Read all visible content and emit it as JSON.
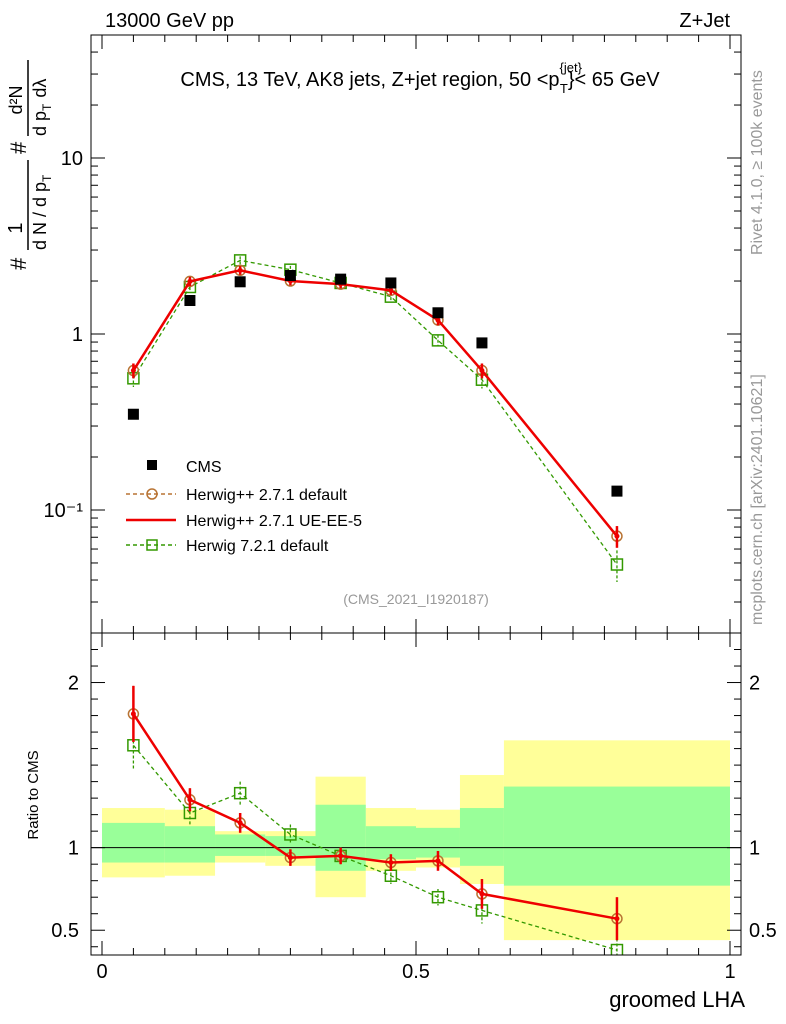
{
  "header": {
    "left": "13000 GeV pp",
    "right": "Z+Jet"
  },
  "side_labels": {
    "rivet": "Rivet 4.1.0, ≥ 100k events",
    "mcplots": "mcplots.cern.ch [arXiv:2401.10621]"
  },
  "chart_data": {
    "type": "line",
    "title": "CMS, 13 TeV, AK8 jets, Z+jet region, 50 <p_T^{jet}< 65 GeV",
    "title_parts": {
      "before": "CMS, 13 TeV, AK8 jets, Z+jet region, 50 <p",
      "sup": "{jet}",
      "sub": "T",
      "after": "}< 65 GeV"
    },
    "xlabel": "groomed LHA",
    "ylabel": "1/dN/dp_T # d²N/(dp_T dλ)",
    "ylabel_parts": {
      "hash1": "#",
      "frac1_num": "1",
      "frac1_den": "d N / d p",
      "frac1_den_sub": "T",
      "hash2": "#",
      "frac2_num": "d²N",
      "frac2_den_a": "d p",
      "frac2_den_sub": "T",
      "frac2_den_b": "dλ"
    },
    "ratio_ylabel": "Ratio to CMS",
    "watermark": "(CMS_2021_I1920187)",
    "xlim": [
      0,
      1
    ],
    "ylim_main": [
      0.02,
      50
    ],
    "ylim_ratio": [
      0.35,
      2.3
    ],
    "x_ticks": [
      0,
      0.5,
      1
    ],
    "x_tick_labels": [
      "0",
      "0.5",
      "1"
    ],
    "y_ticks_main": [
      0.1,
      1,
      10
    ],
    "y_tick_labels_main": [
      "10⁻¹",
      "1",
      "10"
    ],
    "y_ticks_ratio": [
      0.5,
      1,
      2
    ],
    "y_tick_labels_ratio": [
      "0.5",
      "1",
      "2"
    ],
    "bin_edges": [
      0,
      0.1,
      0.18,
      0.26,
      0.34,
      0.42,
      0.5,
      0.57,
      0.64,
      1.0
    ],
    "data": {
      "name": "CMS",
      "x": [
        0.05,
        0.14,
        0.22,
        0.3,
        0.38,
        0.46,
        0.535,
        0.605,
        0.82
      ],
      "y": [
        0.35,
        1.55,
        1.98,
        2.15,
        2.05,
        1.95,
        1.32,
        0.89,
        0.128
      ]
    },
    "series": [
      {
        "name": "Herwig++ 2.7.1 default",
        "color": "#b87333",
        "style": "dashed",
        "marker": "circle",
        "x": [
          0.05,
          0.14,
          0.22,
          0.3,
          0.38,
          0.46,
          0.535,
          0.605,
          0.82
        ],
        "y": [
          0.62,
          1.99,
          2.3,
          2.0,
          1.92,
          1.77,
          1.2,
          0.62,
          0.071
        ],
        "err": [
          0.06,
          0.12,
          0.13,
          0.11,
          0.1,
          0.1,
          0.08,
          0.06,
          0.01
        ]
      },
      {
        "name": "Herwig++ 2.7.1 UE-EE-5",
        "color": "#ee0000",
        "style": "solid",
        "marker": "none",
        "x": [
          0.05,
          0.14,
          0.22,
          0.3,
          0.38,
          0.46,
          0.535,
          0.605,
          0.82
        ],
        "y": [
          0.62,
          1.99,
          2.3,
          2.0,
          1.92,
          1.77,
          1.2,
          0.62,
          0.071
        ],
        "err": [
          0.06,
          0.12,
          0.13,
          0.11,
          0.1,
          0.1,
          0.08,
          0.06,
          0.01
        ]
      },
      {
        "name": "Herwig 7.2.1 default",
        "color": "#339900",
        "style": "dashed",
        "marker": "square",
        "x": [
          0.05,
          0.14,
          0.22,
          0.3,
          0.38,
          0.46,
          0.535,
          0.605,
          0.82
        ],
        "y": [
          0.56,
          1.85,
          2.62,
          2.32,
          1.95,
          1.63,
          0.92,
          0.55,
          0.049
        ],
        "err": [
          0.06,
          0.12,
          0.14,
          0.12,
          0.1,
          0.1,
          0.07,
          0.06,
          0.01
        ]
      }
    ],
    "ratio": {
      "yellow_band": [
        [
          0.82,
          1.24
        ],
        [
          0.83,
          1.23
        ],
        [
          0.91,
          1.1
        ],
        [
          0.89,
          1.1
        ],
        [
          0.7,
          1.43
        ],
        [
          0.86,
          1.24
        ],
        [
          0.88,
          1.23
        ],
        [
          0.78,
          1.44
        ],
        [
          0.44,
          1.65
        ]
      ],
      "green_band": [
        [
          0.91,
          1.15
        ],
        [
          0.91,
          1.13
        ],
        [
          0.95,
          1.08
        ],
        [
          0.95,
          1.07
        ],
        [
          0.86,
          1.26
        ],
        [
          0.93,
          1.13
        ],
        [
          0.94,
          1.12
        ],
        [
          0.89,
          1.24
        ],
        [
          0.77,
          1.37
        ]
      ],
      "series": [
        {
          "name": "Herwig++ 2.7.1 default",
          "x": [
            0.05,
            0.14,
            0.22,
            0.3,
            0.38,
            0.46,
            0.535,
            0.605,
            0.82
          ],
          "y": [
            1.81,
            1.29,
            1.15,
            0.94,
            0.95,
            0.91,
            0.92,
            0.72,
            0.57
          ],
          "err": [
            0.17,
            0.07,
            0.06,
            0.05,
            0.05,
            0.05,
            0.06,
            0.09,
            0.13
          ]
        },
        {
          "name": "Herwig++ 2.7.1 UE-EE-5",
          "x": [
            0.05,
            0.14,
            0.22,
            0.3,
            0.38,
            0.46,
            0.535,
            0.605,
            0.82
          ],
          "y": [
            1.81,
            1.29,
            1.15,
            0.94,
            0.95,
            0.91,
            0.92,
            0.72,
            0.57
          ],
          "err": [
            0.17,
            0.07,
            0.06,
            0.05,
            0.05,
            0.05,
            0.06,
            0.09,
            0.13
          ]
        },
        {
          "name": "Herwig 7.2.1 default",
          "x": [
            0.05,
            0.14,
            0.22,
            0.3,
            0.38,
            0.46,
            0.535,
            0.605,
            0.82
          ],
          "y": [
            1.62,
            1.21,
            1.33,
            1.08,
            0.95,
            0.83,
            0.7,
            0.62,
            0.38
          ],
          "err": [
            0.15,
            0.07,
            0.07,
            0.06,
            0.05,
            0.05,
            0.05,
            0.08,
            0.1
          ]
        }
      ]
    },
    "legend": {
      "placement": "lower-left",
      "entries": [
        "CMS",
        "Herwig++ 2.7.1 default",
        "Herwig++ 2.7.1 UE-EE-5",
        "Herwig 7.2.1 default"
      ]
    }
  }
}
